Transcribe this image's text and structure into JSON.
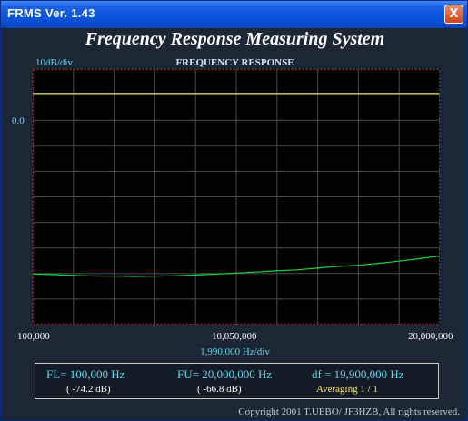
{
  "window": {
    "title": "FRMS   Ver. 1.43",
    "close_glyph": "X"
  },
  "app_title": "Frequency Response Measuring System",
  "graph": {
    "scale_label": "10dB/div",
    "title": "FREQUENCY RESPONSE",
    "ref_label": "0.0",
    "x_start": "100,000",
    "x_center": "10,050,000",
    "x_end": "20,000,000",
    "x_div": "1,990,000  Hz/div"
  },
  "info": {
    "fl": "FL= 100,000  Hz",
    "fu": "FU= 20,000,000  Hz",
    "df": "df = 19,900,000  Hz",
    "fl_db": "( -74.2 dB)",
    "fu_db": "( -66.8 dB)",
    "averaging": "Averaging  1 / 1"
  },
  "copyright": "Copyright 2001 T.UEBO/ JF3HZB, All rights reserved.",
  "colors": {
    "grid": "#4a4a4a",
    "reference_line": "#d8d86a",
    "trace": "#1fd13a",
    "border_dashed": "#c03030",
    "axis_text": "#5fd6ee"
  },
  "chart_data": {
    "type": "line",
    "title": "FREQUENCY RESPONSE",
    "xlabel": "1,990,000  Hz/div",
    "ylabel": "10dB/div",
    "xlim": [
      100000,
      20000000
    ],
    "ylim": [
      -95,
      10
    ],
    "reference_db": 0.0,
    "grid": true,
    "series": [
      {
        "x": [
          100000,
          1100000,
          2100000,
          3100000,
          4100000,
          5100000,
          6100000,
          7100000,
          8100000,
          9100000,
          10050000,
          11000000,
          12000000,
          13000000,
          14000000,
          15000000,
          16000000,
          17000000,
          18000000,
          19000000,
          20000000
        ],
        "y": [
          -74.2,
          -74.4,
          -74.8,
          -75.0,
          -75.1,
          -75.2,
          -75.1,
          -74.9,
          -74.6,
          -74.2,
          -73.8,
          -73.4,
          -72.9,
          -72.5,
          -71.8,
          -71.1,
          -70.6,
          -69.8,
          -68.9,
          -67.9,
          -66.8
        ]
      }
    ]
  }
}
